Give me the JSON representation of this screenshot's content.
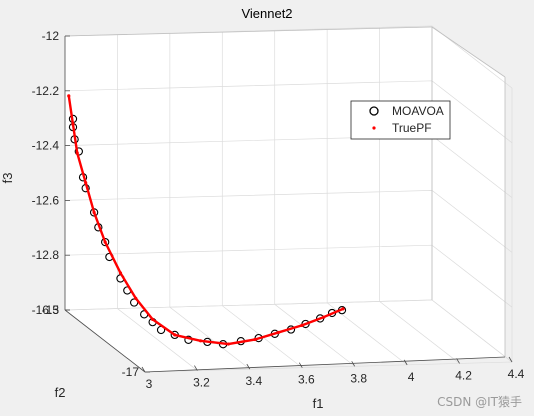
{
  "chart_data": {
    "type": "scatter",
    "projection": "3d",
    "title": "Viennet2",
    "xlabel": "f1",
    "ylabel": "f2",
    "zlabel": "f3",
    "xlim": [
      3,
      4.4
    ],
    "ylim": [
      -17,
      -16.5
    ],
    "zlim": [
      -13,
      -12
    ],
    "xticks": [
      "3",
      "3.2",
      "3.4",
      "3.6",
      "3.8",
      "4",
      "4.2",
      "4.4"
    ],
    "yticks": [
      "-17",
      "-16.5"
    ],
    "zticks": [
      "-12",
      "-12.2",
      "-12.4",
      "-12.6",
      "-12.8",
      "-13"
    ],
    "grid": true,
    "legend_position": "top-right",
    "series": [
      {
        "name": "MOAVOA",
        "marker": "open-circle",
        "color": "#000000",
        "points": [
          {
            "x": 3.0,
            "y": -16.55,
            "z": -12.28
          },
          {
            "x": 3.0,
            "y": -16.55,
            "z": -12.31
          },
          {
            "x": 3.0,
            "y": -16.56,
            "z": -12.35
          },
          {
            "x": 3.01,
            "y": -16.57,
            "z": -12.39
          },
          {
            "x": 3.02,
            "y": -16.58,
            "z": -12.48
          },
          {
            "x": 3.03,
            "y": -16.58,
            "z": -12.52
          },
          {
            "x": 3.05,
            "y": -16.6,
            "z": -12.6
          },
          {
            "x": 3.06,
            "y": -16.61,
            "z": -12.65
          },
          {
            "x": 3.08,
            "y": -16.62,
            "z": -12.7
          },
          {
            "x": 3.09,
            "y": -16.63,
            "z": -12.75
          },
          {
            "x": 3.12,
            "y": -16.65,
            "z": -12.82
          },
          {
            "x": 3.14,
            "y": -16.66,
            "z": -12.86
          },
          {
            "x": 3.16,
            "y": -16.67,
            "z": -12.9
          },
          {
            "x": 3.18,
            "y": -16.7,
            "z": -12.93
          },
          {
            "x": 3.2,
            "y": -16.72,
            "z": -12.95
          },
          {
            "x": 3.22,
            "y": -16.74,
            "z": -12.97
          },
          {
            "x": 3.26,
            "y": -16.76,
            "z": -12.98
          },
          {
            "x": 3.3,
            "y": -16.78,
            "z": -12.99
          },
          {
            "x": 3.36,
            "y": -16.8,
            "z": -12.99
          },
          {
            "x": 3.42,
            "y": -16.8,
            "z": -13.0
          },
          {
            "x": 3.5,
            "y": -16.78,
            "z": -13.0
          },
          {
            "x": 3.58,
            "y": -16.76,
            "z": -13.0
          },
          {
            "x": 3.66,
            "y": -16.73,
            "z": -13.0
          },
          {
            "x": 3.74,
            "y": -16.7,
            "z": -13.0
          },
          {
            "x": 3.82,
            "y": -16.66,
            "z": -13.0
          },
          {
            "x": 3.9,
            "y": -16.62,
            "z": -13.0
          },
          {
            "x": 3.97,
            "y": -16.58,
            "z": -13.0
          },
          {
            "x": 4.02,
            "y": -16.56,
            "z": -13.0
          }
        ]
      },
      {
        "name": "TruePF",
        "marker": "point",
        "color": "#ff0000",
        "points": [
          {
            "x": 2.99,
            "y": -16.54,
            "z": -12.2
          },
          {
            "x": 3.0,
            "y": -16.55,
            "z": -12.3
          },
          {
            "x": 3.01,
            "y": -16.56,
            "z": -12.4
          },
          {
            "x": 3.03,
            "y": -16.58,
            "z": -12.5
          },
          {
            "x": 3.05,
            "y": -16.6,
            "z": -12.6
          },
          {
            "x": 3.08,
            "y": -16.62,
            "z": -12.7
          },
          {
            "x": 3.12,
            "y": -16.65,
            "z": -12.8
          },
          {
            "x": 3.16,
            "y": -16.68,
            "z": -12.88
          },
          {
            "x": 3.2,
            "y": -16.72,
            "z": -12.94
          },
          {
            "x": 3.26,
            "y": -16.76,
            "z": -12.98
          },
          {
            "x": 3.34,
            "y": -16.79,
            "z": -12.99
          },
          {
            "x": 3.44,
            "y": -16.8,
            "z": -13.0
          },
          {
            "x": 3.56,
            "y": -16.77,
            "z": -13.0
          },
          {
            "x": 3.68,
            "y": -16.72,
            "z": -13.0
          },
          {
            "x": 3.8,
            "y": -16.67,
            "z": -13.0
          },
          {
            "x": 3.92,
            "y": -16.61,
            "z": -13.0
          },
          {
            "x": 4.03,
            "y": -16.55,
            "z": -13.0
          }
        ]
      }
    ]
  },
  "watermark": "CSDN @IT猿手"
}
